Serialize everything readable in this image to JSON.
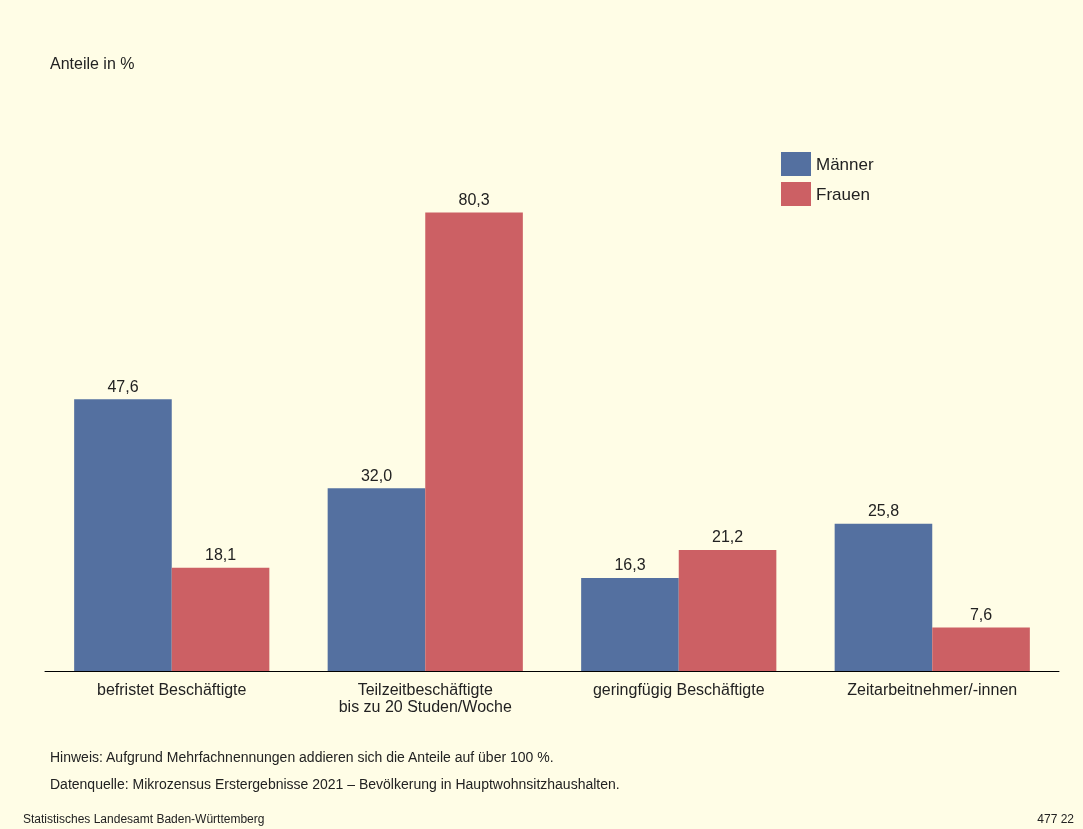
{
  "chart_data": {
    "type": "bar",
    "categories": [
      "befristet Beschäftigte",
      "Teilzeitbeschäftigte\nbis zu 20 Studen/Woche",
      "geringfügig Beschäftigte",
      "Zeitarbeitnehmer/-innen"
    ],
    "series": [
      {
        "name": "Männer",
        "color": "#5470a0",
        "values": [
          47.6,
          32.0,
          16.3,
          25.8
        ],
        "value_labels": [
          "47,6",
          "32,0",
          "16,3",
          "25,8"
        ]
      },
      {
        "name": "Frauen",
        "color": "#cc6064",
        "values": [
          18.1,
          80.3,
          21.2,
          7.6
        ],
        "value_labels": [
          "18,1",
          "80,3",
          "21,2",
          "7,6"
        ]
      }
    ],
    "legend": "top right",
    "annotations": [
      "Anteile in %",
      "Hinweis: Aufgrund Mehrfachnennungen addieren sich die Anteile auf über 100 %.",
      "Datenquelle: Mikrozensus Erstergebnisse 2021 – Bevölkerung in Hauptwohnsitzhaushalten.",
      "Statistisches Landesamt Baden-Württemberg",
      "477 22"
    ]
  }
}
